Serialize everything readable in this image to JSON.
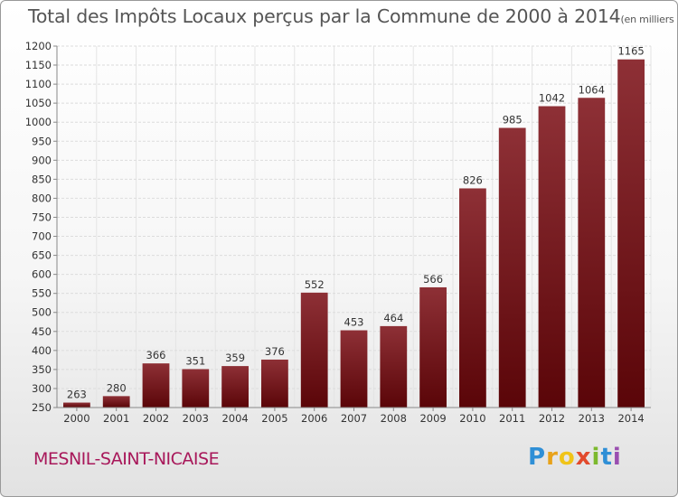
{
  "chart_data": {
    "type": "bar",
    "title": "Total des Impôts Locaux perçus par la Commune de 2000 à 2014",
    "unit": "(en milliers d'€)",
    "categories": [
      "2000",
      "2001",
      "2002",
      "2003",
      "2004",
      "2005",
      "2006",
      "2007",
      "2008",
      "2009",
      "2010",
      "2011",
      "2012",
      "2013",
      "2014"
    ],
    "values": [
      263,
      280,
      366,
      351,
      359,
      376,
      552,
      453,
      464,
      566,
      826,
      985,
      1042,
      1064,
      1165
    ],
    "ylim": [
      250,
      1200
    ],
    "yticks": [
      250,
      300,
      350,
      400,
      450,
      500,
      550,
      600,
      650,
      700,
      750,
      800,
      850,
      900,
      950,
      1000,
      1050,
      1100,
      1150,
      1200
    ],
    "grid": true,
    "bar_color": "#7d1a1f",
    "xlabel": "",
    "ylabel": ""
  },
  "footer": {
    "commune": "MESNIL-SAINT-NICAISE",
    "logo": [
      "P",
      "r",
      "o",
      "x",
      "i",
      "t",
      "i"
    ]
  }
}
